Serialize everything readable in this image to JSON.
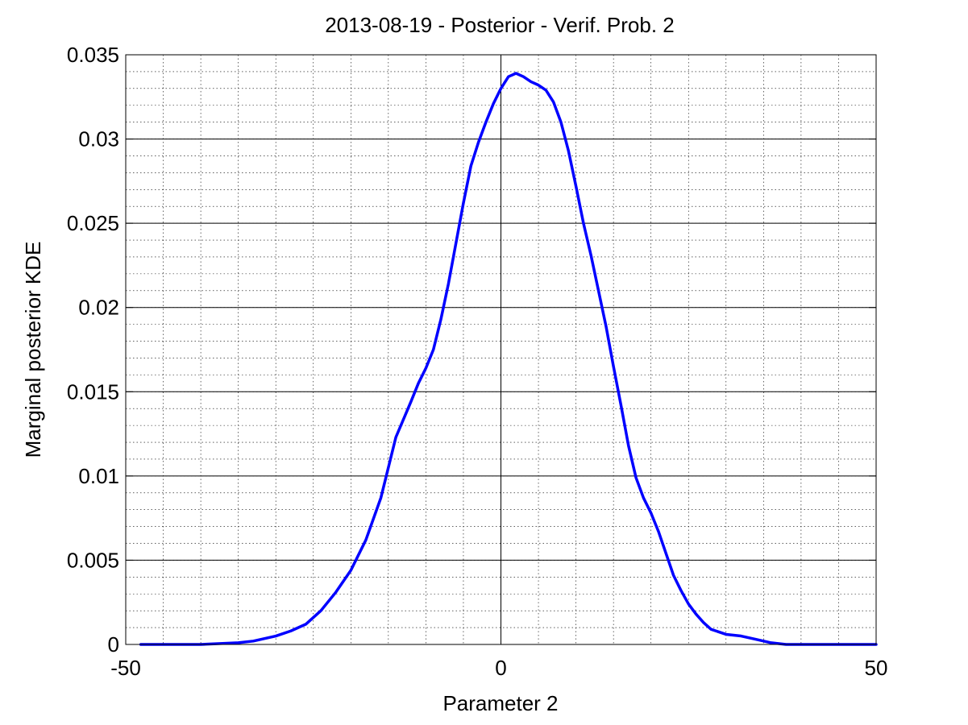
{
  "chart_data": {
    "type": "line",
    "title": "2013-08-19 - Posterior - Verif. Prob. 2",
    "xlabel": "Parameter 2",
    "ylabel": "Marginal posterior KDE",
    "xlim": [
      -50,
      50
    ],
    "ylim": [
      0,
      0.035
    ],
    "x_ticks": [
      -50,
      0,
      50
    ],
    "x_tick_labels": [
      "-50",
      "0",
      "50"
    ],
    "y_ticks": [
      0,
      0.005,
      0.01,
      0.015,
      0.02,
      0.025,
      0.03,
      0.035
    ],
    "y_tick_labels": [
      "0",
      "0.005",
      "0.01",
      "0.015",
      "0.02",
      "0.025",
      "0.03",
      "0.035"
    ],
    "grid": true,
    "minor_grid": true,
    "series": [
      {
        "color": "#0000ff",
        "x": [
          -48,
          -40,
          -35,
          -33,
          -30,
          -28,
          -26,
          -24,
          -22,
          -20,
          -18,
          -16,
          -14,
          -12,
          -11,
          -10,
          -9,
          -8,
          -7,
          -6,
          -5,
          -4,
          -3,
          -2,
          -1,
          0,
          1,
          2,
          3,
          4,
          5,
          6,
          7,
          8,
          9,
          10,
          11,
          12,
          13,
          14,
          15,
          16,
          17,
          18,
          19,
          20,
          21,
          22,
          23,
          24,
          25,
          26,
          27,
          28,
          30,
          32,
          34,
          36,
          38,
          40,
          42,
          44,
          46,
          48,
          50
        ],
        "y": [
          0.0,
          0.0,
          0.0001,
          0.0002,
          0.0005,
          0.0008,
          0.0012,
          0.002,
          0.0031,
          0.0044,
          0.0062,
          0.0087,
          0.0123,
          0.0144,
          0.0155,
          0.0164,
          0.0175,
          0.0193,
          0.0214,
          0.0238,
          0.0262,
          0.0284,
          0.0298,
          0.031,
          0.0321,
          0.033,
          0.0337,
          0.0339,
          0.0337,
          0.0334,
          0.0332,
          0.0329,
          0.0322,
          0.031,
          0.0293,
          0.0272,
          0.025,
          0.0231,
          0.021,
          0.0189,
          0.0165,
          0.0142,
          0.0118,
          0.0099,
          0.0087,
          0.0078,
          0.0067,
          0.0054,
          0.0041,
          0.0032,
          0.0024,
          0.0018,
          0.0013,
          0.0009,
          0.0006,
          0.0005,
          0.0003,
          0.0001,
          0.0,
          0.0,
          0.0,
          0.0,
          0.0,
          0.0,
          0.0
        ]
      }
    ]
  }
}
